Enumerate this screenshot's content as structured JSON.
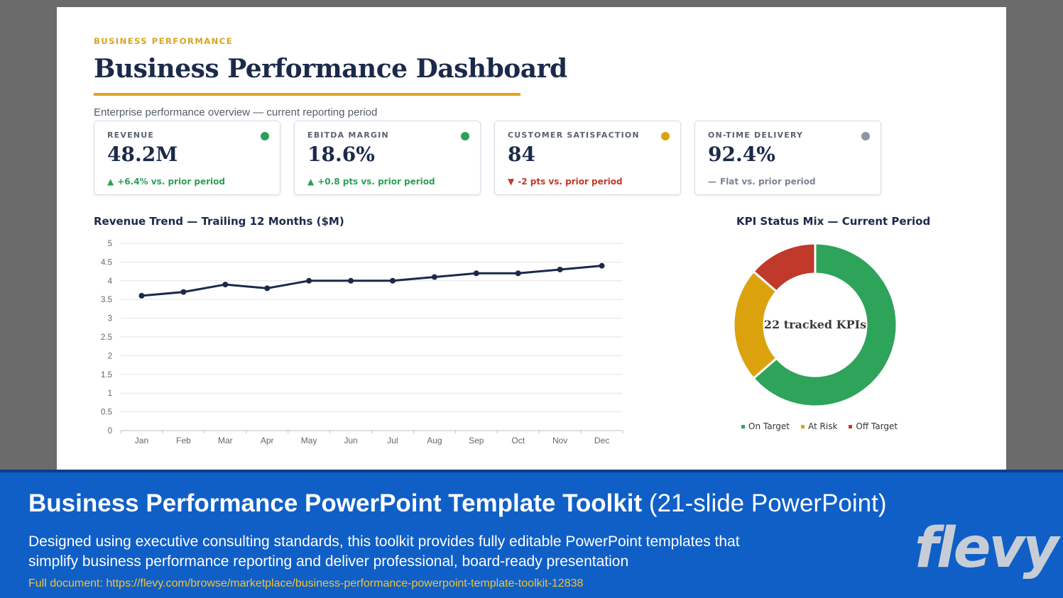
{
  "slide": {
    "eyebrow": "BUSINESS PERFORMANCE",
    "title": "Business Performance Dashboard",
    "subtitle": "Enterprise performance overview — current reporting period"
  },
  "kpis": [
    {
      "label": "REVENUE",
      "value": "48.2M",
      "arrow": "▲",
      "delta": "+6.4% vs. prior period",
      "status": "green",
      "dot_color": "#2e9e58",
      "delta_color": "#2e9e58"
    },
    {
      "label": "EBITDA MARGIN",
      "value": "18.6%",
      "arrow": "▲",
      "delta": "+0.8 pts vs. prior period",
      "status": "green",
      "dot_color": "#2e9e58",
      "delta_color": "#2e9e58"
    },
    {
      "label": "CUSTOMER SATISFACTION",
      "value": "84",
      "arrow": "▼",
      "delta": "-2 pts vs. prior period",
      "status": "amber",
      "dot_color": "#dca20e",
      "delta_color": "#c0392b"
    },
    {
      "label": "ON-TIME DELIVERY",
      "value": "92.4%",
      "arrow": "—",
      "delta": "Flat vs. prior period",
      "status": "gray",
      "dot_color": "#8c95a3",
      "delta_color": "#7b8491"
    }
  ],
  "chart_data": [
    {
      "type": "line",
      "title": "Revenue Trend — Trailing 12 Months ($M)",
      "categories": [
        "Jan",
        "Feb",
        "Mar",
        "Apr",
        "May",
        "Jun",
        "Jul",
        "Aug",
        "Sep",
        "Oct",
        "Nov",
        "Dec"
      ],
      "values": [
        3.6,
        3.7,
        3.9,
        3.8,
        4.0,
        4.0,
        4.0,
        4.1,
        4.2,
        4.2,
        4.3,
        4.4
      ],
      "y_ticks": [
        "0",
        "0.5",
        "1",
        "1.5",
        "2",
        "2.5",
        "3",
        "3.5",
        "4",
        "4.5",
        "5"
      ],
      "ylim": [
        0,
        5
      ],
      "grid": true,
      "line_color": "#1b2a4a"
    },
    {
      "type": "pie",
      "title": "KPI Status Mix — Current Period",
      "center_label": "22 tracked KPIs",
      "labels": [
        "On Target",
        "At Risk",
        "Off Target"
      ],
      "values": [
        14,
        5,
        3
      ],
      "colors": [
        "#2ea35a",
        "#dca20e",
        "#c0392b"
      ],
      "legend_position": "bottom"
    }
  ],
  "banner": {
    "title_bold": "Business Performance PowerPoint Template Toolkit",
    "title_light": "(21-slide PowerPoint)",
    "description": "Designed using executive consulting standards, this toolkit provides fully editable PowerPoint templates that simplify business performance reporting and deliver professional, board-ready presentation",
    "link": "Full document: https://flevy.com/browse/marketplace/business-performance-powerpoint-template-toolkit-12838",
    "logo": "flevy"
  }
}
